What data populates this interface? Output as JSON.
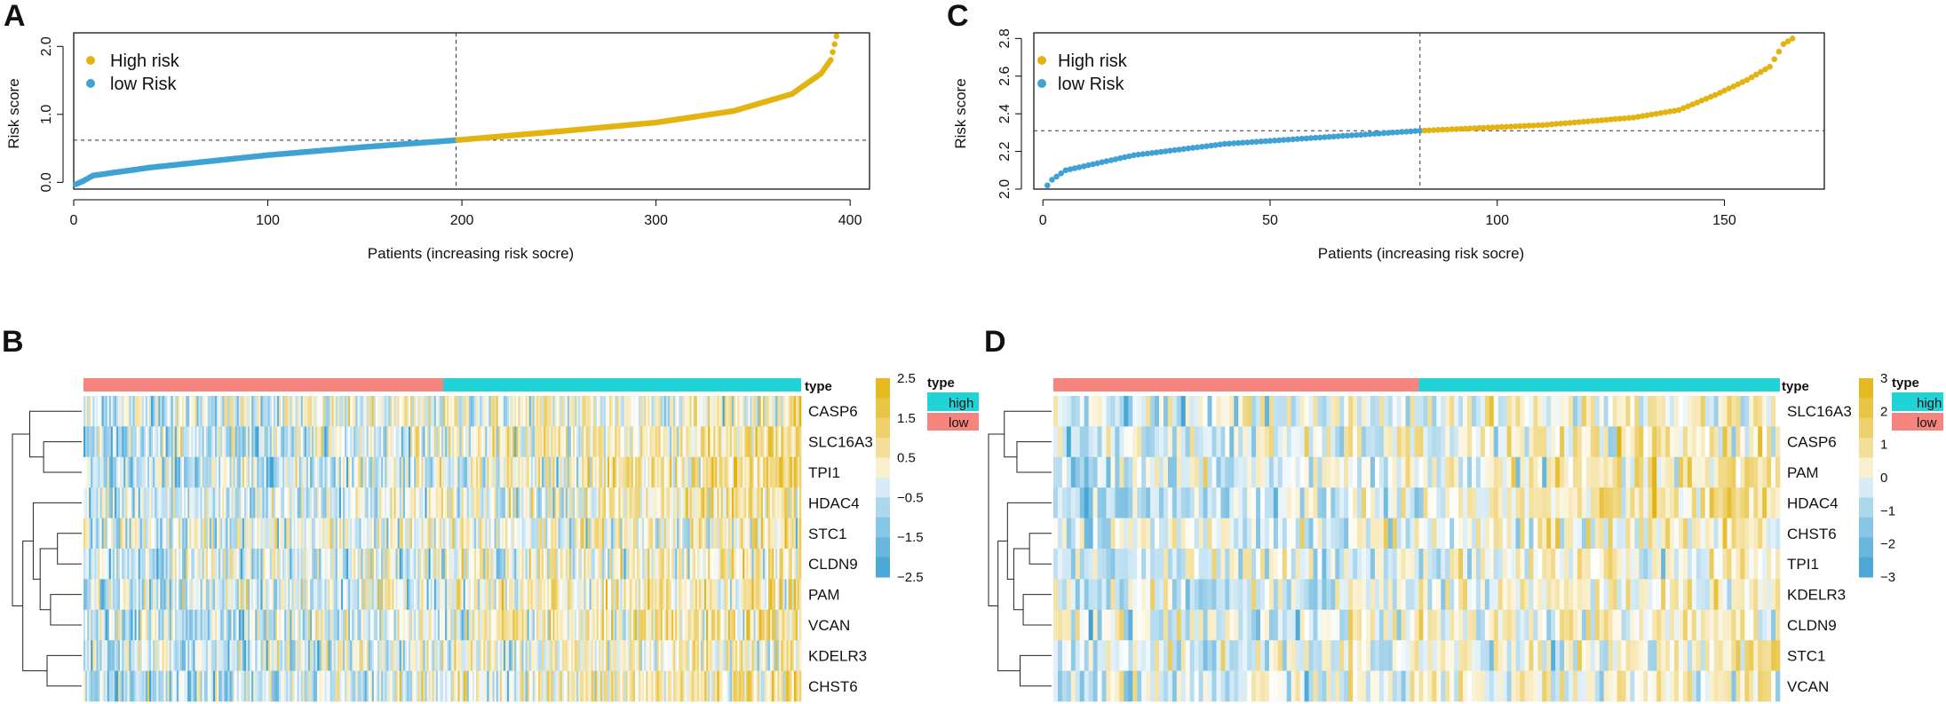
{
  "colors": {
    "high": "#e3b411",
    "low": "#3ea2d4",
    "type_high": "#20d3d6",
    "type_low": "#f7857f"
  },
  "panel_labels": [
    "A",
    "B",
    "C",
    "D"
  ],
  "chart_data": [
    {
      "id": "A",
      "type": "scatter",
      "xlabel": "Patients (increasing risk socre)",
      "ylabel": "Risk score",
      "xlim": [
        0,
        410
      ],
      "ylim": [
        -0.1,
        2.2
      ],
      "xticks": [
        0,
        100,
        200,
        300,
        400
      ],
      "yticks": [
        0.0,
        1.0,
        2.0
      ],
      "ytick_labels": [
        "0.0",
        "1.0",
        "2.0"
      ],
      "cutoff_index": 197,
      "cutoff_score": 0.62,
      "n_patients": 393,
      "curve_knots": [
        [
          1,
          -0.03
        ],
        [
          5,
          0.02
        ],
        [
          10,
          0.1
        ],
        [
          40,
          0.22
        ],
        [
          100,
          0.4
        ],
        [
          150,
          0.52
        ],
        [
          197,
          0.62
        ],
        [
          250,
          0.75
        ],
        [
          300,
          0.88
        ],
        [
          340,
          1.05
        ],
        [
          370,
          1.3
        ],
        [
          385,
          1.6
        ],
        [
          390,
          1.8
        ],
        [
          393,
          2.15
        ]
      ],
      "legend": [
        {
          "label": "High risk",
          "color_key": "high"
        },
        {
          "label": "low Risk",
          "color_key": "low"
        }
      ]
    },
    {
      "id": "C",
      "type": "scatter",
      "xlabel": "Patients (increasing risk socre)",
      "ylabel": "Risk score",
      "xlim": [
        -2,
        172
      ],
      "ylim": [
        2.0,
        2.83
      ],
      "xticks": [
        0,
        50,
        100,
        150
      ],
      "yticks": [
        2.0,
        2.2,
        2.4,
        2.6,
        2.8
      ],
      "ytick_labels": [
        "2.0",
        "2.2",
        "2.4",
        "2.6",
        "2.8"
      ],
      "cutoff_index": 83,
      "cutoff_score": 2.31,
      "n_patients": 165,
      "curve_knots": [
        [
          1,
          2.02
        ],
        [
          2,
          2.05
        ],
        [
          5,
          2.1
        ],
        [
          20,
          2.18
        ],
        [
          40,
          2.24
        ],
        [
          83,
          2.31
        ],
        [
          110,
          2.34
        ],
        [
          130,
          2.38
        ],
        [
          140,
          2.42
        ],
        [
          148,
          2.5
        ],
        [
          155,
          2.58
        ],
        [
          160,
          2.65
        ],
        [
          163,
          2.77
        ],
        [
          165,
          2.8
        ]
      ],
      "legend": [
        {
          "label": "High risk",
          "color_key": "high"
        },
        {
          "label": "low Risk",
          "color_key": "low"
        }
      ]
    },
    {
      "id": "B",
      "type": "heatmap",
      "type_label": "type",
      "genes": [
        "CASP6",
        "SLC16A3",
        "TPI1",
        "HDAC4",
        "STC1",
        "CLDN9",
        "PAM",
        "VCAN",
        "KDELR3",
        "CHST6"
      ],
      "gene_bias": [
        0.4,
        0.9,
        1.0,
        0.6,
        0.4,
        0.5,
        0.7,
        0.7,
        0.6,
        0.9
      ],
      "n_columns": 393,
      "n_low": 197,
      "annotation_order": [
        "low",
        "high"
      ],
      "color_scale": {
        "min": -2.5,
        "max": 2.5
      },
      "colorbar_ticks": [
        2.5,
        1.5,
        0.5,
        -0.5,
        -1.5,
        -2.5
      ],
      "colorbar_tick_labels": [
        "2.5",
        "1.5",
        "0.5",
        "−0.5",
        "−1.5",
        "−2.5"
      ],
      "legend": {
        "title": "type",
        "items": [
          {
            "label": "high",
            "color_key": "type_high"
          },
          {
            "label": "low",
            "color_key": "type_low"
          }
        ]
      }
    },
    {
      "id": "D",
      "type": "heatmap",
      "type_label": "type",
      "genes": [
        "SLC16A3",
        "CASP6",
        "PAM",
        "HDAC4",
        "CHST6",
        "TPI1",
        "KDELR3",
        "CLDN9",
        "STC1",
        "VCAN"
      ],
      "gene_bias": [
        0.5,
        0.7,
        0.8,
        1.2,
        0.7,
        0.6,
        0.6,
        0.5,
        0.5,
        0.7
      ],
      "n_columns": 165,
      "n_low": 83,
      "annotation_order": [
        "low",
        "high"
      ],
      "color_scale": {
        "min": -3,
        "max": 3
      },
      "colorbar_ticks": [
        3,
        2,
        1,
        0,
        -1,
        -2,
        -3
      ],
      "colorbar_tick_labels": [
        "3",
        "2",
        "1",
        "0",
        "−1",
        "−2",
        "−3"
      ],
      "legend": {
        "title": "type",
        "items": [
          {
            "label": "high",
            "color_key": "type_high"
          },
          {
            "label": "low",
            "color_key": "type_low"
          }
        ]
      }
    }
  ]
}
